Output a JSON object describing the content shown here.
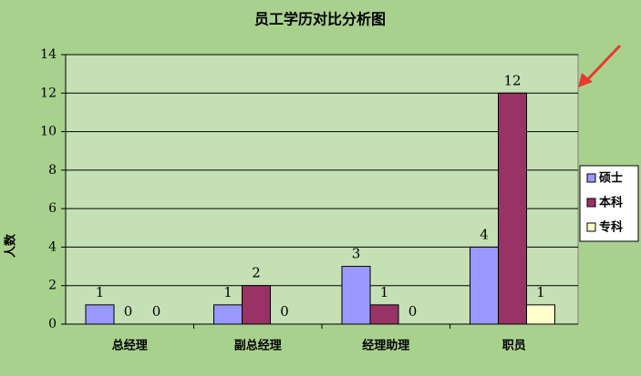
{
  "chart_data": {
    "type": "bar",
    "title": "员工学历对比分析图",
    "y_label": "人数",
    "categories": [
      "总经理",
      "副总经理",
      "经理助理",
      "职员"
    ],
    "series": [
      {
        "name": "硕士",
        "color": "#9999ff",
        "values": [
          1,
          1,
          3,
          4
        ]
      },
      {
        "name": "本科",
        "color": "#993366",
        "values": [
          0,
          2,
          1,
          12
        ]
      },
      {
        "name": "专科",
        "color": "#ffffcc",
        "values": [
          0,
          0,
          0,
          1
        ]
      }
    ],
    "ylim": [
      0,
      14
    ],
    "yticks": [
      0,
      2,
      4,
      6,
      8,
      10,
      12,
      14
    ],
    "grid": true,
    "legend": "right"
  }
}
